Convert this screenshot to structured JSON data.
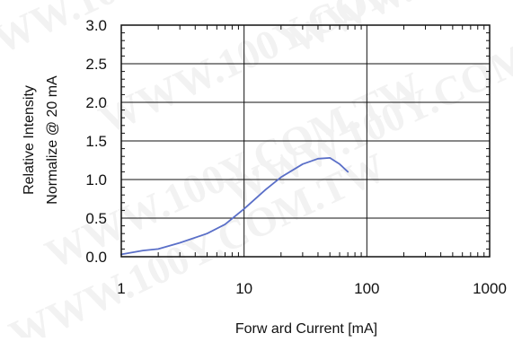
{
  "chart_data": {
    "type": "line",
    "x_scale": "log",
    "xlim": [
      1,
      1000
    ],
    "ylim": [
      0,
      3.0
    ],
    "grid": true,
    "xlabel": "Forw ard Current [mA]",
    "ylabel_lines": [
      "Relative Intensity",
      "Normalize @ 20 mA"
    ],
    "x_ticks": [
      1,
      10,
      100,
      1000
    ],
    "x_tick_labels": [
      "1",
      "10",
      "100",
      "1000"
    ],
    "y_ticks": [
      0,
      0.5,
      1.0,
      1.5,
      2.0,
      2.5,
      3.0
    ],
    "y_tick_labels": [
      "0.0",
      "0.5",
      "1.0",
      "1.5",
      "2.0",
      "2.5",
      "3.0"
    ],
    "series": [
      {
        "color": "#5a6fc8",
        "x": [
          1,
          1.5,
          2,
          3,
          5,
          7,
          10,
          15,
          20,
          30,
          40,
          50,
          60,
          70
        ],
        "y": [
          0.03,
          0.08,
          0.1,
          0.18,
          0.3,
          0.42,
          0.62,
          0.87,
          1.03,
          1.2,
          1.27,
          1.28,
          1.2,
          1.1
        ]
      }
    ],
    "colors": {
      "axes": "#111111",
      "grid": "#111111",
      "line": "#5a6fc8"
    },
    "watermark": "WWW.100Y.COM.TW"
  }
}
